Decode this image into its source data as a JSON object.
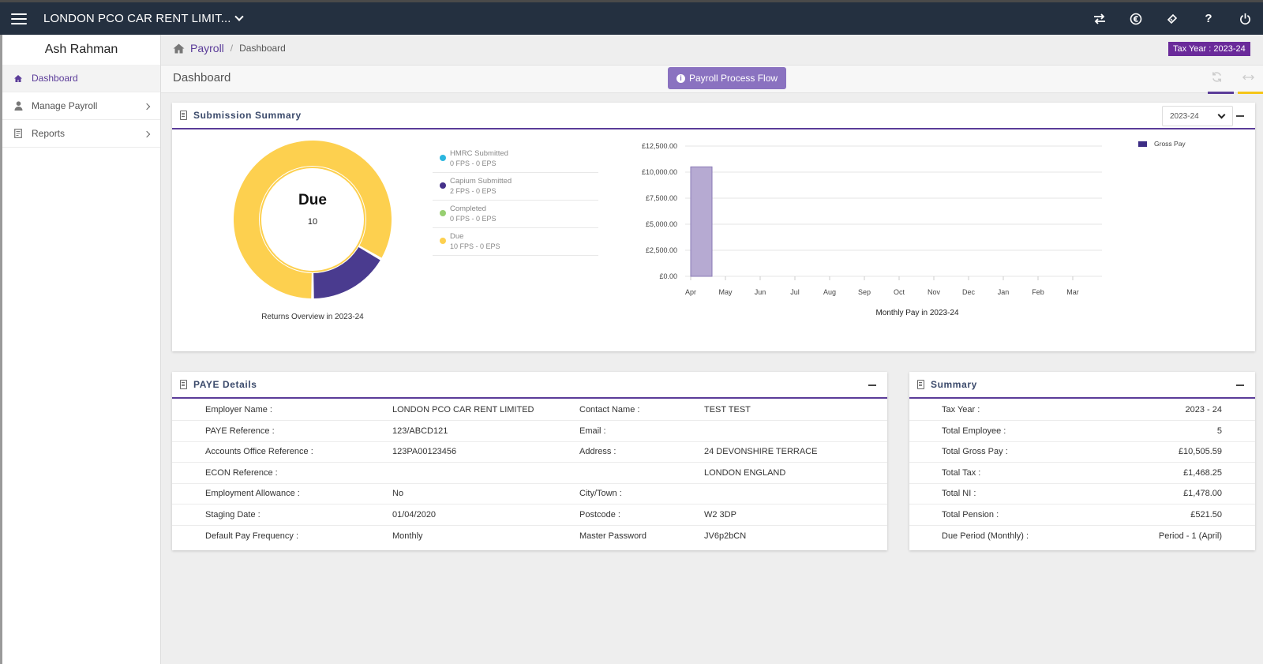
{
  "header": {
    "company": "LONDON PCO CAR RENT LIMIT...",
    "icons": [
      "swap-icon",
      "currency-icon",
      "ticket-icon",
      "help-icon",
      "power-icon"
    ],
    "help_glyph": "?"
  },
  "sidebar": {
    "user_name": "Ash Rahman",
    "items": [
      {
        "label": "Dashboard",
        "icon": "home-icon",
        "active": true
      },
      {
        "label": "Manage Payroll",
        "icon": "user-icon"
      },
      {
        "label": "Reports",
        "icon": "document-icon"
      }
    ]
  },
  "breadcrumb": {
    "root": "Payroll",
    "separator": "/",
    "current": "Dashboard"
  },
  "tax_year_badge": "Tax Year : 2023-24",
  "page": {
    "title": "Dashboard",
    "flow_button": "Payroll Process Flow",
    "flow_icon_glyph": "i"
  },
  "submission": {
    "title": "Submission Summary",
    "year_select": "2023-24",
    "donut": {
      "center_label": "Due",
      "center_value": "10",
      "caption": "Returns Overview in 2023-24",
      "slices": [
        {
          "name": "Due",
          "value": 10,
          "color": "#fdd04f"
        },
        {
          "name": "Capium Submitted",
          "value": 2,
          "color": "#4a3b8f"
        }
      ]
    },
    "legend": [
      {
        "label": "HMRC Submitted",
        "sub": "0 FPS - 0 EPS",
        "color": "#2bb6df"
      },
      {
        "label": "Capium Submitted",
        "sub": "2 FPS - 0 EPS",
        "color": "#45318a"
      },
      {
        "label": "Completed",
        "sub": "0 FPS - 0 EPS",
        "color": "#97cf71"
      },
      {
        "label": "Due",
        "sub": "10 FPS - 0 EPS",
        "color": "#fdd04f"
      }
    ]
  },
  "chart_data": {
    "type": "bar",
    "title": "Monthly Pay in 2023-24",
    "categories": [
      "Apr",
      "May",
      "Jun",
      "Jul",
      "Aug",
      "Sep",
      "Oct",
      "Nov",
      "Dec",
      "Jan",
      "Feb",
      "Mar"
    ],
    "series": [
      {
        "name": "Gross Pay",
        "values": [
          10505.59,
          0,
          0,
          0,
          0,
          0,
          0,
          0,
          0,
          0,
          0,
          0
        ],
        "color": "#b6aad2",
        "border": "#8a7ab5",
        "legend_color": "#3d2d85"
      }
    ],
    "yticks": [
      "£0.00",
      "£2,500.00",
      "£5,000.00",
      "£7,500.00",
      "£10,000.00",
      "£12,500.00"
    ],
    "ylim": [
      0,
      12500
    ],
    "legend_position": "top-right"
  },
  "paye": {
    "title": "PAYE Details",
    "rows": [
      {
        "l1": "Employer Name :",
        "v1": "LONDON PCO CAR RENT LIMITED",
        "l2": "Contact Name :",
        "v2": "TEST TEST"
      },
      {
        "l1": "PAYE Reference :",
        "v1": "123/ABCD121",
        "l2": "Email :",
        "v2": ""
      },
      {
        "l1": "Accounts Office Reference :",
        "v1": "123PA00123456",
        "l2": "Address :",
        "v2": "24 DEVONSHIRE TERRACE"
      },
      {
        "l1": "ECON Reference :",
        "v1": "",
        "l2": "",
        "v2": "LONDON ENGLAND"
      },
      {
        "l1": "Employment Allowance :",
        "v1": "No",
        "l2": "City/Town :",
        "v2": ""
      },
      {
        "l1": "Staging Date :",
        "v1": "01/04/2020",
        "l2": "Postcode :",
        "v2": "W2 3DP"
      },
      {
        "l1": "Default Pay Frequency :",
        "v1": "Monthly",
        "l2": "Master Password",
        "v2": "JV6p2bCN"
      }
    ]
  },
  "summary": {
    "title": "Summary",
    "rows": [
      {
        "label": "Tax Year :",
        "value": "2023 - 24"
      },
      {
        "label": "Total Employee :",
        "value": "5"
      },
      {
        "label": "Total Gross Pay :",
        "value": "£10,505.59"
      },
      {
        "label": "Total Tax :",
        "value": "£1,468.25"
      },
      {
        "label": "Total NI :",
        "value": "£1,478.00"
      },
      {
        "label": "Total Pension :",
        "value": "£521.50"
      },
      {
        "label": "Due Period (Monthly) :",
        "value": "Period - 1 (April)"
      }
    ]
  }
}
